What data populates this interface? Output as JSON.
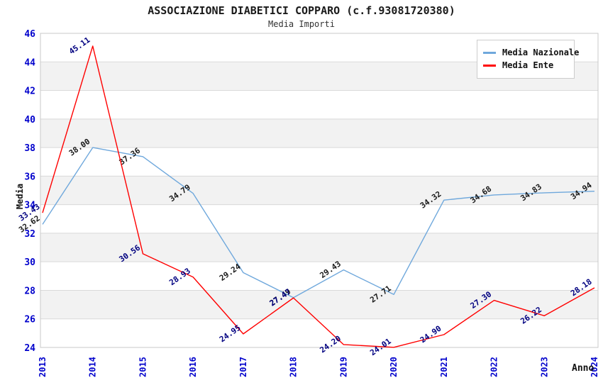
{
  "header": {
    "title": "ASSOCIAZIONE DIABETICI COPPARO (c.f.93081720380)",
    "subtitle": "Media Importi"
  },
  "chart_data": {
    "type": "line",
    "title": "ASSOCIAZIONE DIABETICI COPPARO (c.f.93081720380)",
    "subtitle": "Media Importi",
    "xlabel": "Anno",
    "ylabel": "Media",
    "x": [
      2013,
      2014,
      2015,
      2016,
      2017,
      2018,
      2019,
      2020,
      2021,
      2022,
      2023,
      2024
    ],
    "series": [
      {
        "name": "Media Nazionale",
        "color": "#6FA8DC",
        "label_color": "#1a1a1a",
        "values": [
          32.62,
          38.0,
          37.36,
          34.79,
          29.24,
          27.49,
          29.43,
          27.71,
          34.32,
          34.68,
          34.83,
          34.94
        ]
      },
      {
        "name": "Media Ente",
        "color": "#FF0000",
        "label_color": "#000080",
        "values": [
          33.43,
          45.11,
          30.56,
          28.93,
          24.95,
          27.47,
          24.2,
          24.01,
          24.9,
          27.3,
          26.22,
          28.18
        ]
      }
    ],
    "ylim": [
      24,
      46
    ],
    "ytick_step": 2,
    "yticks": [
      24,
      26,
      28,
      30,
      32,
      34,
      36,
      38,
      40,
      42,
      44,
      46
    ],
    "grid": "horizontal-bands",
    "legend_position": "top-right",
    "colors": {
      "tick_label": "#0000CC",
      "band_gray": "#F2F2F2",
      "gridline": "#D9D9D9",
      "plot_border": "#C9C9C9",
      "axis_title": "#111111"
    }
  }
}
